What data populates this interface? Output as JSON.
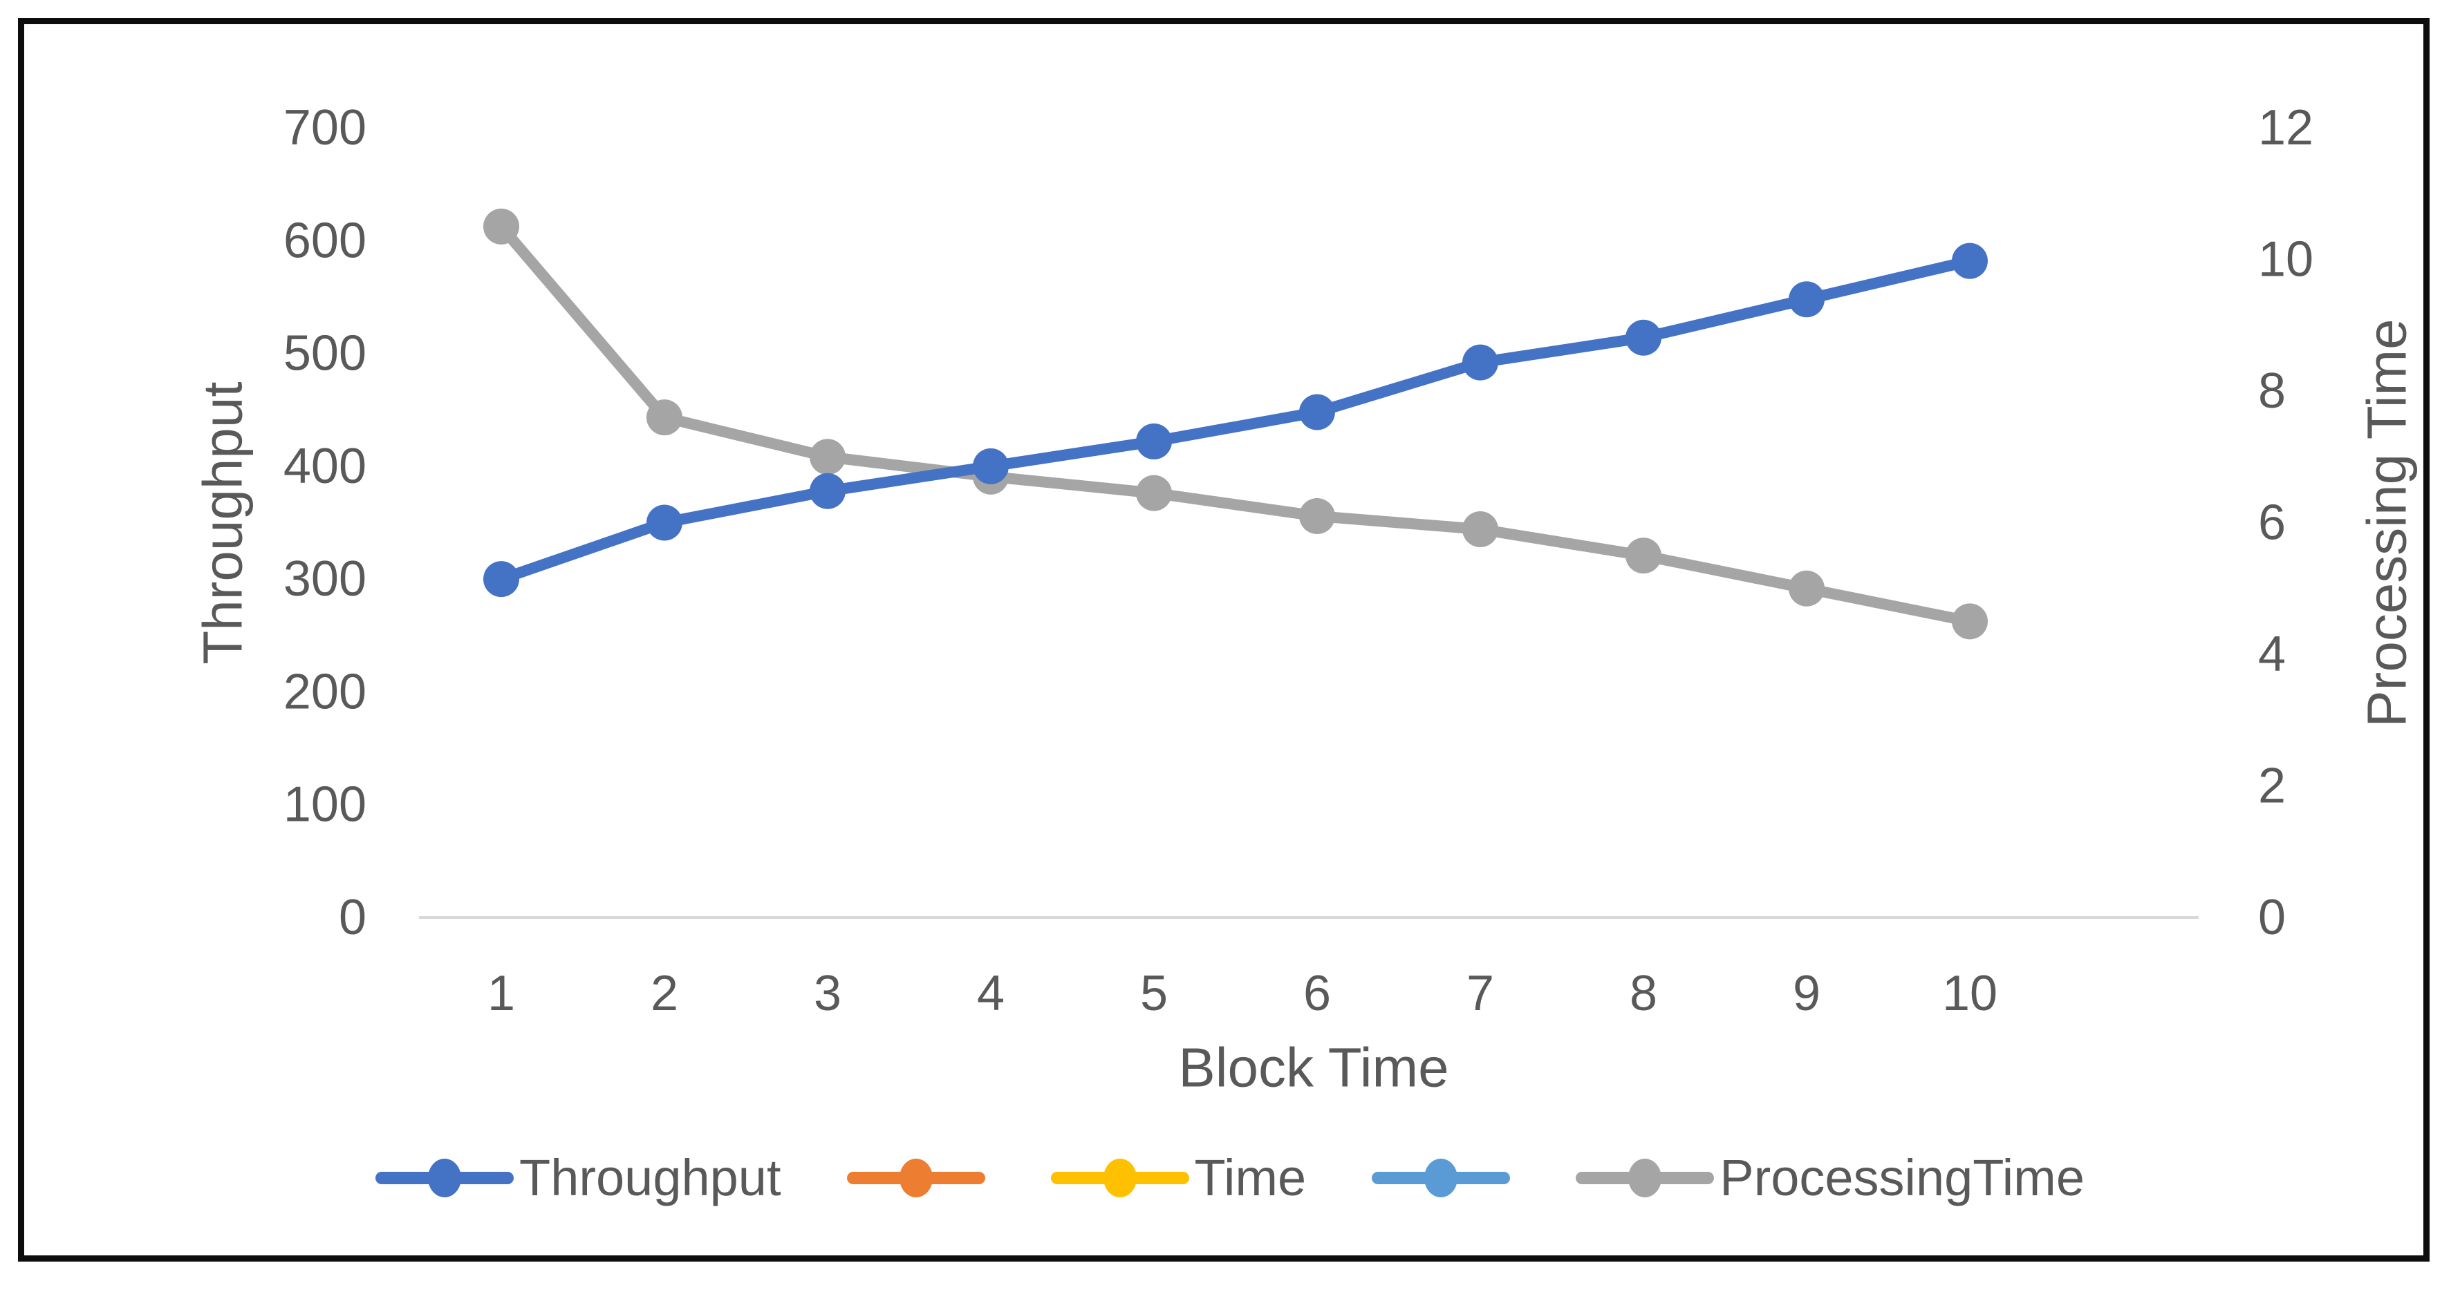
{
  "frame": {
    "border_color": "#0d0d0d",
    "background": "#ffffff"
  },
  "text_color": "#595959",
  "chart_data": {
    "type": "line",
    "title": "",
    "xlabel": "Block Time",
    "x": [
      1,
      2,
      3,
      4,
      5,
      6,
      7,
      8,
      9,
      10
    ],
    "left_axis": {
      "label": "Throughput",
      "ticks": [
        0,
        100,
        200,
        300,
        400,
        500,
        600,
        700
      ],
      "range": [
        0,
        700
      ]
    },
    "right_axis": {
      "label": "Processing Time",
      "ticks": [
        0,
        2,
        4,
        6,
        8,
        10,
        12
      ],
      "range": [
        0,
        12
      ]
    },
    "grid": false,
    "axis_line_color": "#d9d9d9",
    "legend_position": "bottom",
    "series": [
      {
        "name": "ProcessingTime",
        "axis": "right",
        "color": "#A5A5A5",
        "values": [
          10.5,
          7.6,
          7.0,
          6.7,
          6.45,
          6.1,
          5.9,
          5.5,
          5.0,
          4.5
        ]
      },
      {
        "name": "Throughput",
        "axis": "left",
        "color": "#4472C4",
        "values": [
          300,
          350,
          378,
          400,
          422,
          448,
          492,
          514,
          548,
          582
        ]
      }
    ],
    "legend": [
      {
        "label": "Throughput",
        "color": "#4472C4"
      },
      {
        "label": "",
        "color": "#ED7D31"
      },
      {
        "label": "Time",
        "color": "#FFC000"
      },
      {
        "label": "",
        "color": "#5B9BD5"
      },
      {
        "label": "ProcessingTime",
        "color": "#A5A5A5"
      }
    ]
  }
}
